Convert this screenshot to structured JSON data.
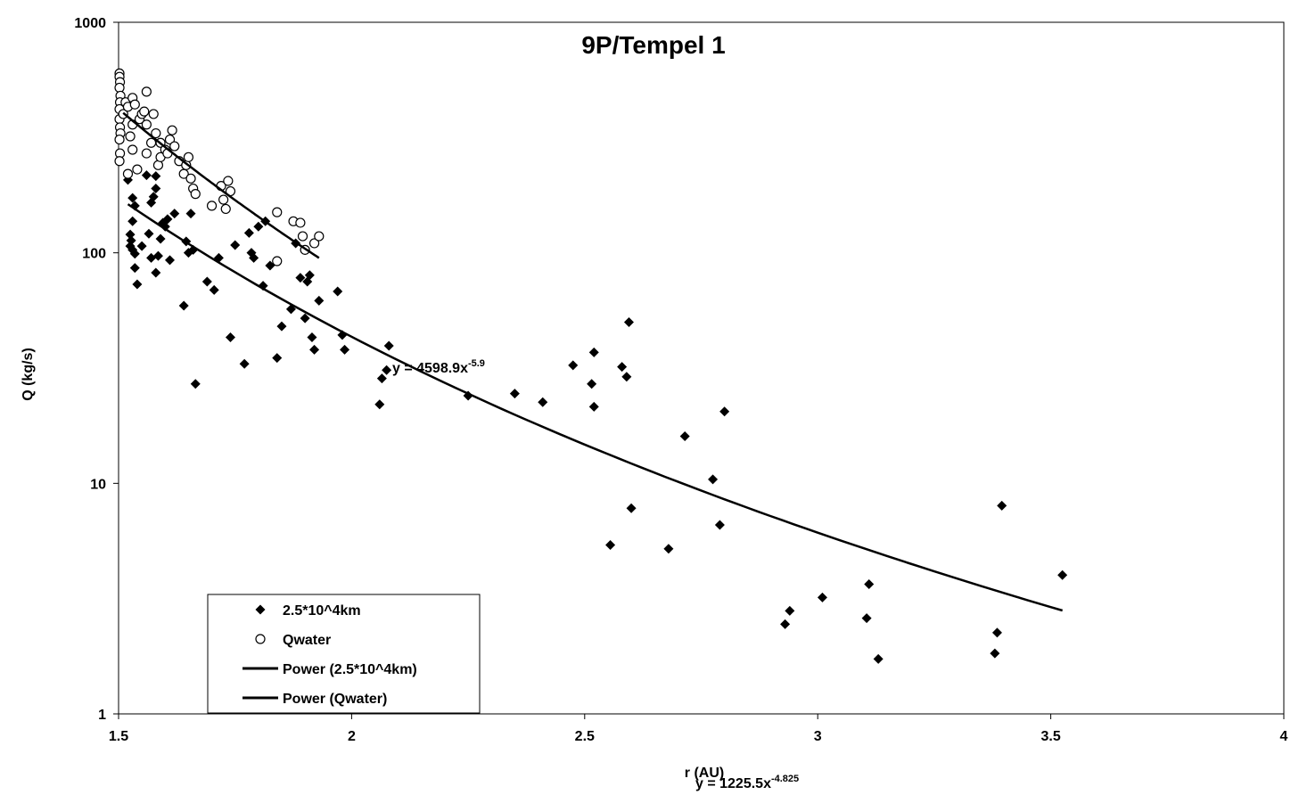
{
  "chart_data": {
    "type": "scatter",
    "title": "9P/Tempel 1",
    "x_label": "r (AU)",
    "y_label": "Q (kg/s)",
    "log_y": true,
    "xlim": [
      1.5,
      4
    ],
    "ylim": [
      1,
      1000
    ],
    "xticks": [
      1.5,
      2,
      2.5,
      3,
      3.5,
      4
    ],
    "yticks": [
      1,
      10,
      100,
      1000
    ],
    "series": [
      {
        "name": "2.5*10^4km",
        "color": "#000000",
        "marker": "diamond",
        "x": [
          1.52,
          1.53,
          1.535,
          1.53,
          1.525,
          1.527,
          1.525,
          1.53,
          1.535,
          1.535,
          1.54,
          1.55,
          1.56,
          1.565,
          1.57,
          1.57,
          1.575,
          1.58,
          1.58,
          1.58,
          1.585,
          1.59,
          1.595,
          1.6,
          1.605,
          1.61,
          1.62,
          1.64,
          1.645,
          1.65,
          1.655,
          1.66,
          1.665,
          1.69,
          1.705,
          1.715,
          1.74,
          1.75,
          1.77,
          1.78,
          1.785,
          1.79,
          1.8,
          1.81,
          1.815,
          1.825,
          1.84,
          1.85,
          1.87,
          1.88,
          1.89,
          1.9,
          1.905,
          1.91,
          1.915,
          1.92,
          1.93,
          1.97,
          1.98,
          1.985,
          2.06,
          2.065,
          2.075,
          2.08,
          2.25,
          2.35,
          2.41,
          2.475,
          2.515,
          2.52,
          2.52,
          2.555,
          2.58,
          2.59,
          2.595,
          2.6,
          2.68,
          2.715,
          2.775,
          2.79,
          2.8,
          2.93,
          2.94,
          3.01,
          3.105,
          3.11,
          3.13,
          3.38,
          3.385,
          3.395,
          3.525
        ],
        "values": [
          207,
          173,
          160,
          137,
          120,
          113,
          107,
          103,
          99,
          86,
          73,
          107,
          217,
          121,
          95,
          165,
          175,
          190,
          215,
          82,
          97,
          115,
          135,
          130,
          140,
          93,
          148,
          59,
          112,
          100,
          148,
          103,
          27,
          75,
          69,
          95,
          43,
          108,
          33,
          122,
          100,
          95,
          130,
          72,
          137,
          88,
          35,
          48,
          57,
          110,
          78,
          52,
          75,
          80,
          43,
          38,
          62,
          68,
          44,
          38,
          22,
          28.5,
          31,
          39.5,
          24,
          24.5,
          22.5,
          32.5,
          27,
          37,
          21.5,
          5.4,
          32,
          29,
          50,
          7.8,
          5.2,
          16,
          10.4,
          6.6,
          20.5,
          2.45,
          2.8,
          3.2,
          2.6,
          3.65,
          1.73,
          1.83,
          2.25,
          8,
          4
        ]
      },
      {
        "name": "Qwater",
        "color": "#000000",
        "marker": "circle",
        "x": [
          1.502,
          1.502,
          1.503,
          1.502,
          1.504,
          1.503,
          1.502,
          1.502,
          1.503,
          1.504,
          1.502,
          1.503,
          1.502,
          1.51,
          1.515,
          1.52,
          1.52,
          1.525,
          1.53,
          1.53,
          1.53,
          1.535,
          1.54,
          1.545,
          1.55,
          1.555,
          1.56,
          1.56,
          1.56,
          1.57,
          1.575,
          1.58,
          1.585,
          1.59,
          1.59,
          1.6,
          1.605,
          1.61,
          1.615,
          1.62,
          1.63,
          1.64,
          1.645,
          1.65,
          1.655,
          1.66,
          1.665,
          1.7,
          1.72,
          1.725,
          1.73,
          1.735,
          1.74,
          1.84,
          1.84,
          1.875,
          1.89,
          1.895,
          1.9,
          1.92,
          1.93
        ],
        "values": [
          600,
          580,
          550,
          520,
          480,
          450,
          420,
          380,
          350,
          330,
          310,
          270,
          250,
          400,
          450,
          430,
          220,
          320,
          470,
          360,
          280,
          440,
          230,
          380,
          400,
          410,
          500,
          360,
          270,
          300,
          400,
          330,
          240,
          300,
          260,
          280,
          270,
          310,
          340,
          290,
          250,
          220,
          240,
          260,
          210,
          190,
          180,
          160,
          195,
          170,
          155,
          205,
          185,
          150,
          92,
          137,
          135,
          118,
          103,
          110,
          118
        ]
      }
    ],
    "trendlines": [
      {
        "name": "Power (2.5*10^4km)",
        "color": "#000000",
        "a": 1225.5,
        "b": -4.825,
        "xrange": [
          1.52,
          3.525
        ],
        "equation": "y = 1225.5x",
        "exponent": "-4.825"
      },
      {
        "name": "Power (Qwater)",
        "color": "#000000",
        "a": 4598.9,
        "b": -5.9,
        "xrange": [
          1.51,
          1.93
        ],
        "equation": "y = 4598.9x",
        "exponent": "-5.9"
      }
    ]
  }
}
